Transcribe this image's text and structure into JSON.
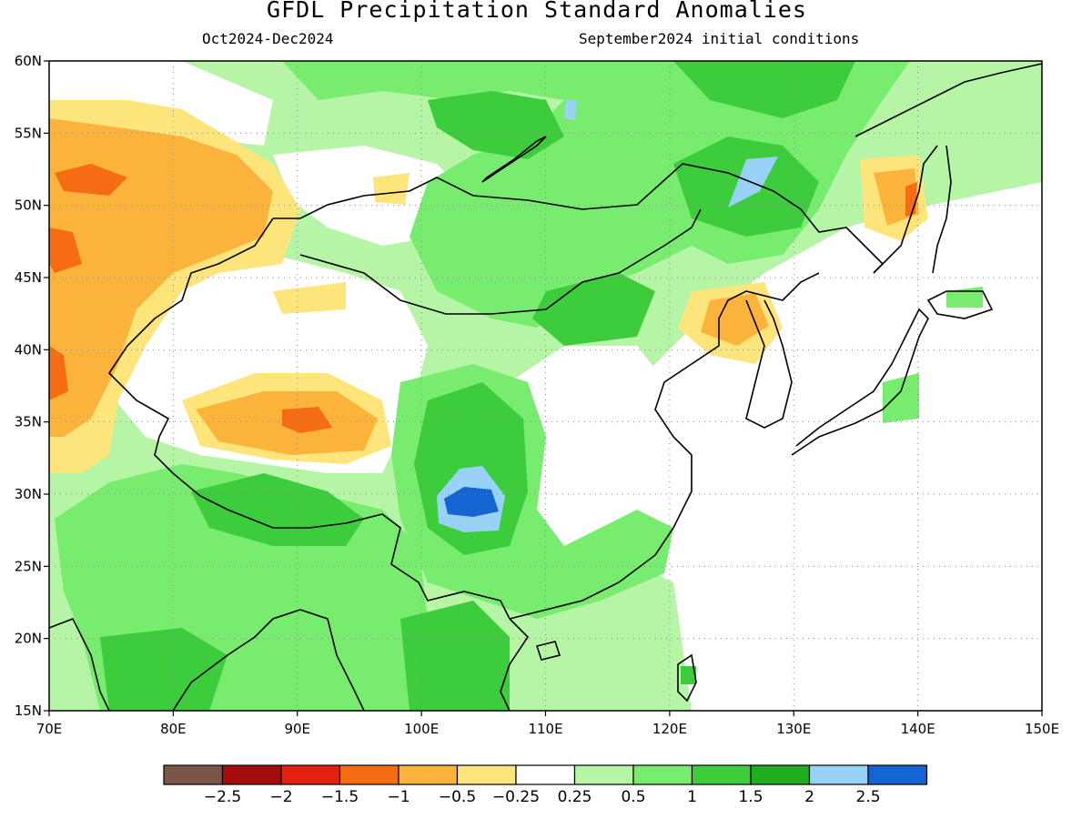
{
  "header": {
    "title": "GFDL Precipitation Standard Anomalies",
    "period": "Oct2024-Dec2024",
    "init": "September2024 initial conditions"
  },
  "map": {
    "lon_range": [
      70,
      150
    ],
    "lat_range": [
      15,
      60
    ],
    "lon_ticks": [
      "70E",
      "80E",
      "90E",
      "100E",
      "110E",
      "120E",
      "130E",
      "140E",
      "150E"
    ],
    "lat_ticks": [
      "15N",
      "20N",
      "25N",
      "30N",
      "35N",
      "40N",
      "45N",
      "50N",
      "55N",
      "60N"
    ],
    "gridlines": "dotted"
  },
  "colorbar": {
    "colors": [
      "#7b5647",
      "#a50d0d",
      "#e2220e",
      "#f56c12",
      "#fbb33c",
      "#fde57c",
      "#ffffff",
      "#b6f5a6",
      "#78ec6f",
      "#3ccc3c",
      "#20ad20",
      "#99d2f7",
      "#1564d4"
    ],
    "labels": [
      "-2.5",
      "-2",
      "-1.5",
      "-1",
      "-0.5",
      "-0.25",
      "0.25",
      "0.5",
      "1",
      "1.5",
      "2",
      "2.5"
    ]
  }
}
